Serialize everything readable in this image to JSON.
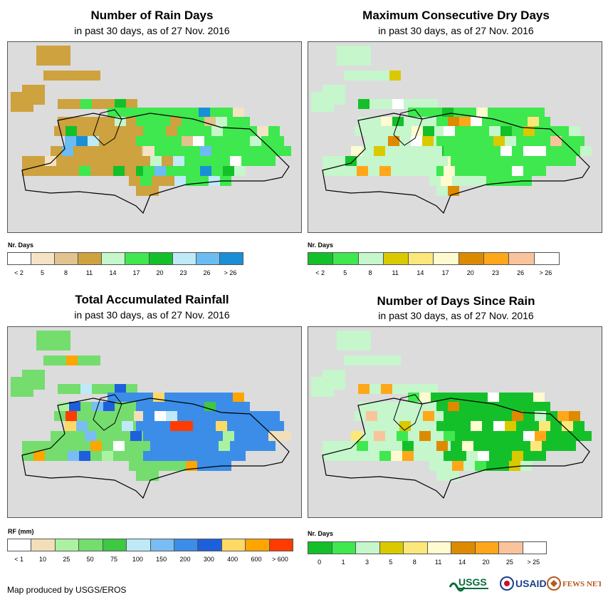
{
  "panels": [
    {
      "title": "Number of Rain Days",
      "subtitle": "in past 30 days, as of 27 Nov. 2016",
      "legend_label": "Nr. Days",
      "legend_colors": [
        "#ffffff",
        "#f5e3c6",
        "#e2c28d",
        "#cda23f",
        "#c6f6cb",
        "#3ee84e",
        "#14c02a",
        "#bfeaf8",
        "#6bbcf2",
        "#1a8fd8"
      ],
      "legend_ticks": [
        "< 2",
        "5",
        "8",
        "11",
        "14",
        "17",
        "20",
        "23",
        "26",
        "> 26"
      ],
      "dominant_west": "#cda23f",
      "dominant_east": "#3ee84e"
    },
    {
      "title": "Maximum Consecutive Dry Days",
      "subtitle": "in past 30 days, as of 27 Nov. 2016",
      "legend_label": "Nr. Days",
      "legend_colors": [
        "#14c02a",
        "#3ee84e",
        "#c6f6cb",
        "#dbc900",
        "#fce87a",
        "#fffbd0",
        "#dc8b00",
        "#ffa71a",
        "#f9c49b",
        "#ffffff"
      ],
      "legend_ticks": [
        "< 2",
        "5",
        "8",
        "11",
        "14",
        "17",
        "20",
        "23",
        "26",
        "> 26"
      ],
      "dominant_west": "#c6f6cb",
      "dominant_east": "#3ee84e"
    },
    {
      "title": "Total Accumulated Rainfall",
      "subtitle": "in past 30 days, as of 27 Nov. 2016",
      "legend_label": "RF (mm)",
      "legend_colors": [
        "#ffffff",
        "#f2dfb9",
        "#aaf2a0",
        "#74dd6e",
        "#3ec844",
        "#bfe9f7",
        "#79bdf4",
        "#3b8de8",
        "#1e5fdc",
        "#ffd966",
        "#ffa500",
        "#ff3c00"
      ],
      "legend_ticks": [
        "< 1",
        "10",
        "25",
        "50",
        "75",
        "100",
        "150",
        "200",
        "300",
        "400",
        "600",
        "> 600"
      ],
      "dominant_west": "#74dd6e",
      "dominant_east": "#3b8de8"
    },
    {
      "title": "Number of Days Since Rain",
      "subtitle": "in past 30 days, as of 27 Nov. 2016",
      "legend_label": "Nr. Days",
      "legend_colors": [
        "#14c02a",
        "#3ee84e",
        "#c6f6cb",
        "#dbc900",
        "#fce87a",
        "#fffbd0",
        "#dc8b00",
        "#ffa71a",
        "#f9c49b",
        "#ffffff"
      ],
      "legend_ticks": [
        "0",
        "1",
        "3",
        "5",
        "8",
        "11",
        "14",
        "20",
        "25",
        "> 25"
      ],
      "dominant_west": "#c6f6cb",
      "dominant_east": "#14c02a"
    }
  ],
  "footer": {
    "credit": "Map produced by USGS/EROS",
    "logos": [
      "USGS",
      "USAID",
      "FEWS NET"
    ]
  }
}
